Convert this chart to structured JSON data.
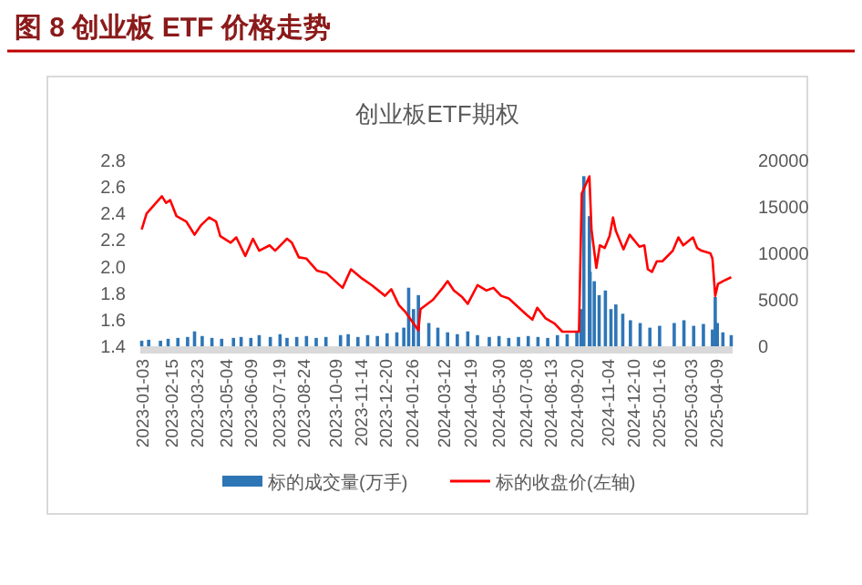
{
  "chart_data": {
    "type": "line",
    "title": "图 8 创业板 ETF 价格走势",
    "subtitle": "创业板ETF期权",
    "legend": "bottom",
    "xlim": [
      "2023-01-01",
      "2025-05-02"
    ],
    "xticks": [
      "2023-01-03",
      "2023-02-15",
      "2023-03-23",
      "2023-05-04",
      "2023-06-09",
      "2023-07-19",
      "2023-08-24",
      "2023-10-09",
      "2023-11-14",
      "2023-12-20",
      "2024-01-26",
      "2024-03-12",
      "2024-04-19",
      "2024-05-30",
      "2024-07-08",
      "2024-08-13",
      "2024-09-20",
      "2024-11-04",
      "2024-12-10",
      "2025-01-16",
      "2025-03-03",
      "2025-04-09"
    ],
    "ylim": [
      1.4,
      2.8
    ],
    "yticks": [
      1.4,
      1.6,
      1.8,
      {
        "value": 2,
        "label": "2.0"
      },
      2.2,
      2.4,
      2.6,
      2.8
    ],
    "y2lim": [
      0,
      20000
    ],
    "y2ticks": [
      0,
      5000,
      10000,
      15000,
      20000
    ],
    "series": [
      {
        "name": "标的成交量(万手)",
        "type": "bar",
        "axis": "y2",
        "color": "#2e75b6",
        "x": [
          "2023-01-03",
          "2023-01-13",
          "2023-01-30",
          "2023-02-10",
          "2023-02-24",
          "2023-03-10",
          "2023-03-20",
          "2023-03-31",
          "2023-04-14",
          "2023-04-28",
          "2023-05-15",
          "2023-05-26",
          "2023-06-09",
          "2023-06-21",
          "2023-07-07",
          "2023-07-21",
          "2023-07-31",
          "2023-08-14",
          "2023-08-28",
          "2023-09-11",
          "2023-09-25",
          "2023-10-16",
          "2023-10-27",
          "2023-11-10",
          "2023-11-24",
          "2023-12-08",
          "2023-12-22",
          "2024-01-05",
          "2024-01-15",
          "2024-01-22",
          "2024-01-29",
          "2024-02-05",
          "2024-02-20",
          "2024-03-04",
          "2024-03-18",
          "2024-04-01",
          "2024-04-16",
          "2024-04-30",
          "2024-05-17",
          "2024-05-31",
          "2024-06-14",
          "2024-06-28",
          "2024-07-12",
          "2024-07-26",
          "2024-08-09",
          "2024-08-23",
          "2024-09-06",
          "2024-09-20",
          "2024-09-26",
          "2024-09-30",
          "2024-10-08",
          "2024-10-09",
          "2024-10-15",
          "2024-10-22",
          "2024-10-31",
          "2024-11-08",
          "2024-11-15",
          "2024-11-25",
          "2024-12-06",
          "2024-12-20",
          "2025-01-03",
          "2025-01-17",
          "2025-02-07",
          "2025-02-21",
          "2025-03-07",
          "2025-03-21",
          "2025-04-03",
          "2025-04-07",
          "2025-04-10",
          "2025-04-18",
          "2025-04-30"
        ],
        "values": [
          600,
          700,
          600,
          800,
          900,
          1000,
          1600,
          1100,
          900,
          800,
          900,
          1000,
          900,
          1200,
          1000,
          1300,
          900,
          1000,
          1100,
          900,
          1000,
          1200,
          1300,
          1000,
          1200,
          1100,
          1400,
          1500,
          2000,
          6300,
          4000,
          5500,
          2500,
          2000,
          1500,
          1300,
          1600,
          1200,
          1000,
          1100,
          900,
          1000,
          1100,
          1000,
          900,
          1200,
          1300,
          1600,
          4000,
          18300,
          14000,
          8000,
          7000,
          5500,
          6000,
          4000,
          4500,
          3500,
          2800,
          2500,
          2000,
          2200,
          2500,
          2800,
          2200,
          2400,
          1800,
          5300,
          2500,
          1500,
          1200
        ]
      },
      {
        "name": "标的收盘价(左轴)",
        "color": "#ff0000",
        "x": [
          "2023-01-03",
          "2023-01-10",
          "2023-02-01",
          "2023-02-07",
          "2023-02-13",
          "2023-02-22",
          "2023-03-08",
          "2023-03-20",
          "2023-03-29",
          "2023-04-10",
          "2023-04-20",
          "2023-04-26",
          "2023-05-11",
          "2023-05-19",
          "2023-06-01",
          "2023-06-12",
          "2023-06-21",
          "2023-07-06",
          "2023-07-14",
          "2023-07-31",
          "2023-08-07",
          "2023-08-17",
          "2023-08-28",
          "2023-09-12",
          "2023-09-26",
          "2023-10-19",
          "2023-10-31",
          "2023-11-16",
          "2023-11-30",
          "2023-12-19",
          "2023-12-28",
          "2024-01-08",
          "2024-01-17",
          "2024-02-05",
          "2024-02-08",
          "2024-02-26",
          "2024-03-11",
          "2024-03-18",
          "2024-03-27",
          "2024-04-08",
          "2024-04-16",
          "2024-04-30",
          "2024-05-13",
          "2024-05-23",
          "2024-06-03",
          "2024-06-14",
          "2024-07-09",
          "2024-07-18",
          "2024-07-25",
          "2024-08-06",
          "2024-08-19",
          "2024-08-30",
          "2024-09-10",
          "2024-09-23",
          "2024-09-27",
          "2024-10-08",
          "2024-10-11",
          "2024-10-18",
          "2024-10-23",
          "2024-10-30",
          "2024-11-06",
          "2024-11-11",
          "2024-11-15",
          "2024-11-26",
          "2024-12-05",
          "2024-12-19",
          "2024-12-26",
          "2024-12-31",
          "2025-01-06",
          "2025-01-13",
          "2025-01-21",
          "2025-02-05",
          "2025-02-13",
          "2025-02-20",
          "2025-03-06",
          "2025-03-12",
          "2025-03-18",
          "2025-03-31",
          "2025-04-03",
          "2025-04-07",
          "2025-04-11",
          "2025-04-18",
          "2025-04-30"
        ],
        "values": [
          2.28,
          2.4,
          2.53,
          2.48,
          2.5,
          2.38,
          2.34,
          2.24,
          2.31,
          2.37,
          2.34,
          2.23,
          2.18,
          2.22,
          2.08,
          2.21,
          2.12,
          2.16,
          2.12,
          2.21,
          2.18,
          2.07,
          2.06,
          1.97,
          1.95,
          1.84,
          1.98,
          1.91,
          1.86,
          1.78,
          1.83,
          1.71,
          1.66,
          1.52,
          1.68,
          1.75,
          1.84,
          1.89,
          1.82,
          1.77,
          1.72,
          1.86,
          1.82,
          1.84,
          1.78,
          1.76,
          1.64,
          1.6,
          1.69,
          1.61,
          1.57,
          1.51,
          1.51,
          1.51,
          2.55,
          2.68,
          2.28,
          1.99,
          2.16,
          2.14,
          2.23,
          2.37,
          2.27,
          2.13,
          2.24,
          2.15,
          2.16,
          1.98,
          1.96,
          2.04,
          2.04,
          2.12,
          2.22,
          2.16,
          2.22,
          2.14,
          2.12,
          2.1,
          2.06,
          1.78,
          1.87,
          1.89,
          1.92
        ]
      }
    ]
  }
}
